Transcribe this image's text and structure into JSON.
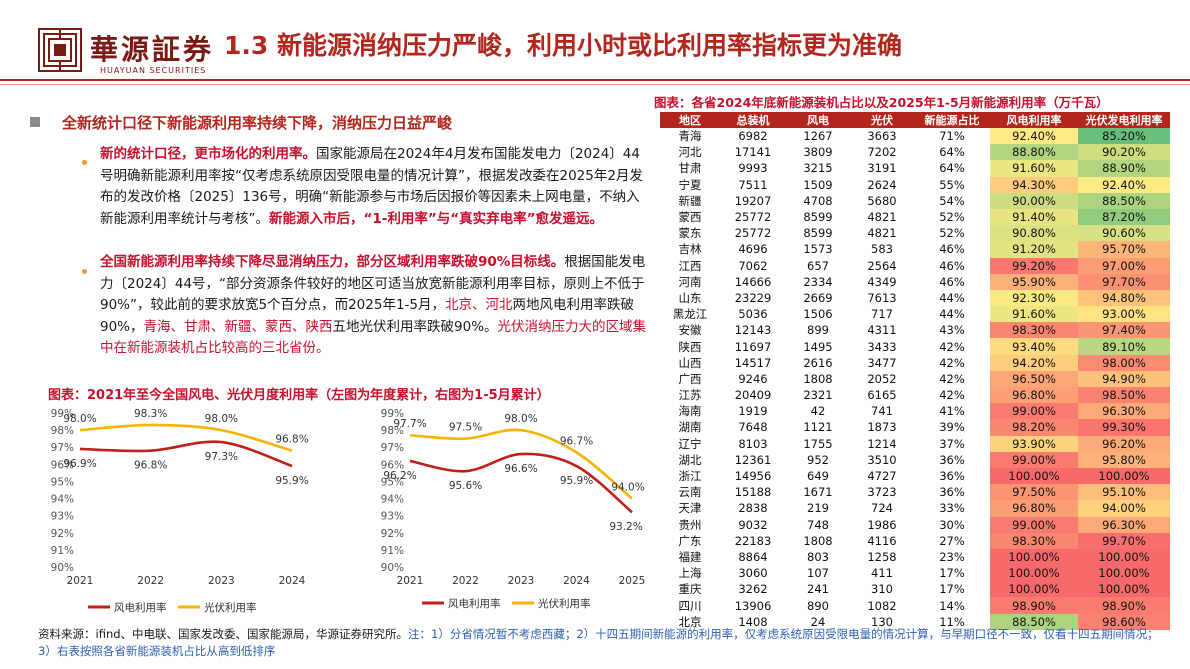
{
  "header": {
    "logo_cn": "華源証券",
    "logo_en": "HUAYUAN SECURITIES",
    "title": "1.3 新能源消纳压力严峻，利用小时或比利用率指标更为准确"
  },
  "body": {
    "heading": "全新统计口径下新能源利用率持续下降，消纳压力日益严峻",
    "bullet1": {
      "bold": "新的统计口径，更市场化的利用率。",
      "text": "国家能源局在2024年4月发布国能发电力〔2024〕44号明确新能源利用率按“仅考虑系统原因受限电量的情况计算”，根据发改委在2025年2月发布的发改价格〔2025〕136号，明确“新能源参与市场后因报价等因素未上网电量，不纳入新能源利用率统计与考核”。",
      "bold2": "新能源入市后，“1-利用率”与“真实弃电率”愈发遥远。"
    },
    "bullet2": {
      "bold": "全国新能源利用率持续下降尽显消纳压力，部分区域利用率跌破90%目标线。",
      "text1": "根据国能发电力〔2024〕44号，“部分资源条件较好的地区可适当放宽新能源利用率目标，原则上不低于90%”，较此前的要求放宽5个百分点，而2025年1-5月，",
      "red1": "北京、河北",
      "text2": "两地风电利用率跌破90%，",
      "red2": "青海、甘肃、新疆、蒙西、陕西",
      "text3": "五地光伏利用率跌破90%。",
      "red3": "光伏消纳压力大的区域集中在新能源装机占比较高的三北省份。"
    }
  },
  "chart_section": {
    "title": "图表：2021年至今全国风电、光伏月度利用率（左图为年度累计，右图为1-5月累计）"
  },
  "chart_data": [
    {
      "type": "line",
      "x": [
        "2021",
        "2022",
        "2023",
        "2024"
      ],
      "ylim": [
        90,
        99
      ],
      "yticks": [
        "99%",
        "98%",
        "97%",
        "96%",
        "95%",
        "94%",
        "93%",
        "92%",
        "91%",
        "90%"
      ],
      "series": [
        {
          "name": "风电利用率",
          "color": "#c0201a",
          "values": [
            96.9,
            96.8,
            97.3,
            95.9
          ],
          "labels": [
            "96.9%",
            "96.8%",
            "97.3%",
            "95.9%"
          ]
        },
        {
          "name": "光伏利用率",
          "color": "#f5b400",
          "values": [
            98.0,
            98.3,
            98.0,
            96.8
          ],
          "labels": [
            "98.0%",
            "98.3%",
            "98.0%",
            "96.8%"
          ]
        }
      ]
    },
    {
      "type": "line",
      "x": [
        "2021",
        "2022",
        "2023",
        "2024",
        "2025"
      ],
      "ylim": [
        90,
        99
      ],
      "yticks": [
        "99%",
        "98%",
        "97%",
        "96%",
        "95%",
        "94%",
        "93%",
        "92%",
        "91%",
        "90%"
      ],
      "series": [
        {
          "name": "风电利用率",
          "color": "#c0201a",
          "values": [
            96.2,
            95.6,
            96.6,
            95.9,
            93.2
          ],
          "labels": [
            "96.2%",
            "95.6%",
            "96.6%",
            "95.9%",
            "93.2%"
          ]
        },
        {
          "name": "光伏利用率",
          "color": "#f5b400",
          "values": [
            97.7,
            97.5,
            98.0,
            96.7,
            94.0
          ],
          "labels": [
            "97.7%",
            "97.5%",
            "98.0%",
            "96.7%",
            "94.0%"
          ]
        }
      ]
    }
  ],
  "table": {
    "title": "图表：各省2024年底新能源装机占比以及2025年1-5月新能源利用率（万千瓦）",
    "headers": [
      "地区",
      "总装机",
      "风电",
      "光伏",
      "新能源占比",
      "风电利用率",
      "光伏发电利用率"
    ],
    "rows": [
      [
        "青海",
        "6982",
        "1267",
        "3663",
        "71%",
        "92.40%",
        "85.20%"
      ],
      [
        "河北",
        "17141",
        "3809",
        "7202",
        "64%",
        "88.80%",
        "90.20%"
      ],
      [
        "甘肃",
        "9993",
        "3215",
        "3191",
        "64%",
        "91.60%",
        "88.90%"
      ],
      [
        "宁夏",
        "7511",
        "1509",
        "2624",
        "55%",
        "94.30%",
        "92.40%"
      ],
      [
        "新疆",
        "19207",
        "4708",
        "5680",
        "54%",
        "90.00%",
        "88.50%"
      ],
      [
        "蒙西",
        "25772",
        "8599",
        "4821",
        "52%",
        "91.40%",
        "87.20%"
      ],
      [
        "蒙东",
        "25772",
        "8599",
        "4821",
        "52%",
        "90.80%",
        "90.60%"
      ],
      [
        "吉林",
        "4696",
        "1573",
        "583",
        "46%",
        "91.20%",
        "95.70%"
      ],
      [
        "江西",
        "7062",
        "657",
        "2564",
        "46%",
        "99.20%",
        "97.00%"
      ],
      [
        "河南",
        "14666",
        "2334",
        "4349",
        "46%",
        "95.90%",
        "97.70%"
      ],
      [
        "山东",
        "23229",
        "2669",
        "7613",
        "44%",
        "92.30%",
        "94.80%"
      ],
      [
        "黑龙江",
        "5036",
        "1506",
        "717",
        "44%",
        "91.60%",
        "93.00%"
      ],
      [
        "安徽",
        "12143",
        "899",
        "4311",
        "43%",
        "98.30%",
        "97.40%"
      ],
      [
        "陕西",
        "11697",
        "1495",
        "3433",
        "42%",
        "93.40%",
        "89.10%"
      ],
      [
        "山西",
        "14517",
        "2616",
        "3477",
        "42%",
        "94.20%",
        "98.00%"
      ],
      [
        "广西",
        "9246",
        "1808",
        "2052",
        "42%",
        "96.50%",
        "94.90%"
      ],
      [
        "江苏",
        "20409",
        "2321",
        "6165",
        "42%",
        "96.80%",
        "98.50%"
      ],
      [
        "海南",
        "1919",
        "42",
        "741",
        "41%",
        "99.00%",
        "96.30%"
      ],
      [
        "湖南",
        "7648",
        "1121",
        "1873",
        "39%",
        "98.20%",
        "99.30%"
      ],
      [
        "辽宁",
        "8103",
        "1755",
        "1214",
        "37%",
        "93.90%",
        "96.20%"
      ],
      [
        "湖北",
        "12361",
        "952",
        "3510",
        "36%",
        "99.00%",
        "95.80%"
      ],
      [
        "浙江",
        "14956",
        "649",
        "4727",
        "36%",
        "100.00%",
        "100.00%"
      ],
      [
        "云南",
        "15188",
        "1671",
        "3723",
        "36%",
        "97.50%",
        "95.10%"
      ],
      [
        "天津",
        "2838",
        "219",
        "724",
        "33%",
        "96.80%",
        "94.00%"
      ],
      [
        "贵州",
        "9032",
        "748",
        "1986",
        "30%",
        "99.00%",
        "96.30%"
      ],
      [
        "广东",
        "22183",
        "1808",
        "4116",
        "27%",
        "98.30%",
        "99.70%"
      ],
      [
        "福建",
        "8864",
        "803",
        "1258",
        "23%",
        "100.00%",
        "100.00%"
      ],
      [
        "上海",
        "3060",
        "107",
        "411",
        "17%",
        "100.00%",
        "100.00%"
      ],
      [
        "重庆",
        "3262",
        "241",
        "310",
        "17%",
        "100.00%",
        "100.00%"
      ],
      [
        "四川",
        "13906",
        "890",
        "1082",
        "14%",
        "98.90%",
        "98.90%"
      ],
      [
        "北京",
        "1408",
        "24",
        "130",
        "11%",
        "88.50%",
        "98.60%"
      ]
    ]
  },
  "footer": {
    "source": "资料来源：ifind、中电联、国家发改委、国家能源局，华源证券研究所。",
    "note": "注：1）分省情况暂不考虑西藏；2）十四五期间新能源的利用率，仅考虑系统原因受限电量的情况计算，与早期口径不一致，仅看十四五期间情况；3）右表按照各省新能源装机占比从高到低排序"
  }
}
